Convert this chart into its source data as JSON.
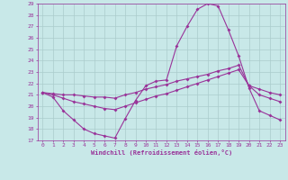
{
  "xlabel": "Windchill (Refroidissement éolien,°C)",
  "bg_color": "#c8e8e8",
  "grid_color": "#aacccc",
  "line_color": "#993399",
  "xlim": [
    -0.5,
    23.5
  ],
  "ylim": [
    17,
    29
  ],
  "xticks": [
    0,
    1,
    2,
    3,
    4,
    5,
    6,
    7,
    8,
    9,
    10,
    11,
    12,
    13,
    14,
    15,
    16,
    17,
    18,
    19,
    20,
    21,
    22,
    23
  ],
  "yticks": [
    17,
    18,
    19,
    20,
    21,
    22,
    23,
    24,
    25,
    26,
    27,
    28,
    29
  ],
  "line1_x": [
    0,
    1,
    2,
    3,
    4,
    5,
    6,
    7,
    8,
    9,
    10,
    11,
    12,
    13,
    14,
    15,
    16,
    17,
    18,
    19,
    20,
    21,
    22,
    23
  ],
  "line1_y": [
    21.2,
    20.8,
    19.6,
    18.8,
    18.0,
    17.6,
    17.4,
    17.2,
    18.9,
    20.5,
    21.8,
    22.2,
    22.3,
    25.3,
    27.0,
    28.5,
    29.0,
    28.8,
    26.7,
    24.4,
    21.6,
    19.6,
    19.2,
    18.8
  ],
  "line2_x": [
    0,
    1,
    2,
    3,
    4,
    5,
    6,
    7,
    8,
    9,
    10,
    11,
    12,
    13,
    14,
    15,
    16,
    17,
    18,
    19,
    20,
    21,
    22,
    23
  ],
  "line2_y": [
    21.2,
    21.1,
    21.0,
    21.0,
    20.9,
    20.8,
    20.8,
    20.7,
    21.0,
    21.2,
    21.5,
    21.7,
    21.9,
    22.2,
    22.4,
    22.6,
    22.8,
    23.1,
    23.3,
    23.6,
    21.8,
    21.5,
    21.2,
    21.0
  ],
  "line3_x": [
    0,
    1,
    2,
    3,
    4,
    5,
    6,
    7,
    8,
    9,
    10,
    11,
    12,
    13,
    14,
    15,
    16,
    17,
    18,
    19,
    20,
    21,
    22,
    23
  ],
  "line3_y": [
    21.2,
    21.0,
    20.7,
    20.4,
    20.2,
    20.0,
    19.8,
    19.7,
    20.0,
    20.3,
    20.6,
    20.9,
    21.1,
    21.4,
    21.7,
    22.0,
    22.3,
    22.6,
    22.9,
    23.2,
    21.8,
    21.0,
    20.7,
    20.4
  ]
}
